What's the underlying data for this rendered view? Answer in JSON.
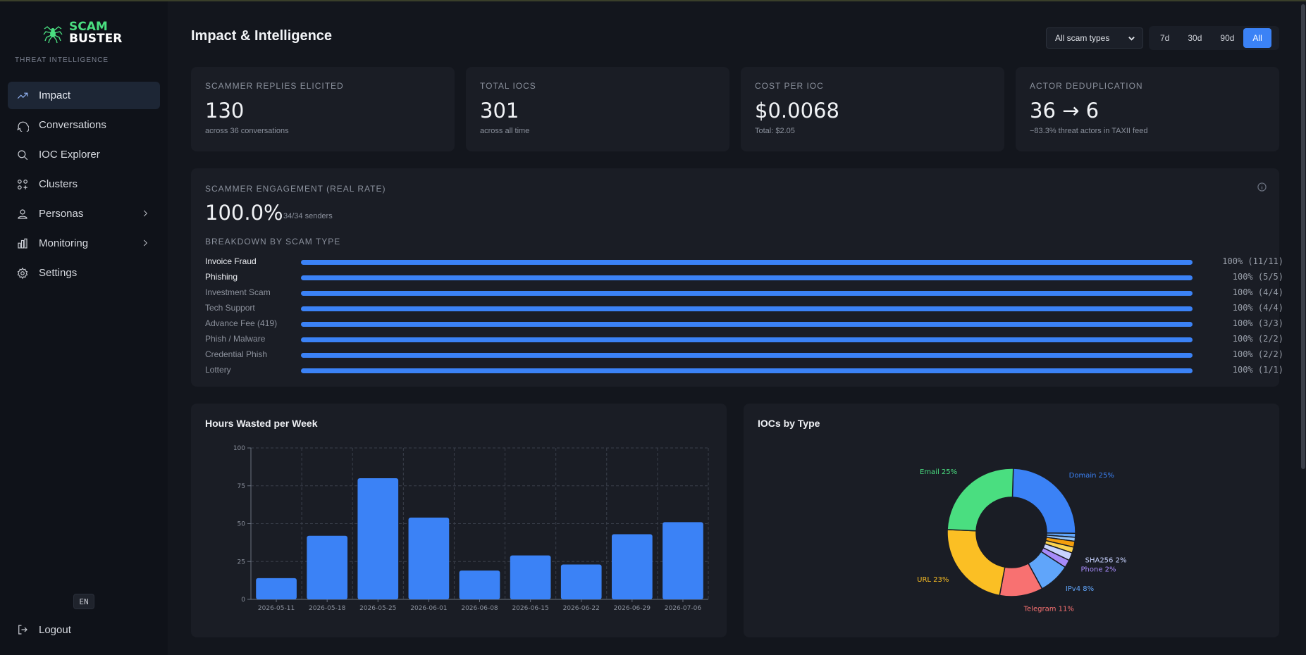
{
  "app": {
    "brand_line1": "SCAM",
    "brand_line2": "BUSTER",
    "brand_sub": "THREAT INTELLIGENCE",
    "logo_icon": "spider-icon"
  },
  "sidebar": {
    "items": [
      {
        "label": "Impact",
        "icon": "trend-icon",
        "active": true
      },
      {
        "label": "Conversations",
        "icon": "chat-icon"
      },
      {
        "label": "IOC Explorer",
        "icon": "search-icon"
      },
      {
        "label": "Clusters",
        "icon": "clusters-icon"
      },
      {
        "label": "Personas",
        "icon": "user-icon",
        "expandable": true
      },
      {
        "label": "Monitoring",
        "icon": "chart-icon",
        "expandable": true
      },
      {
        "label": "Settings",
        "icon": "gear-icon"
      }
    ],
    "language": "EN",
    "logout": "Logout"
  },
  "header": {
    "title": "Impact & Intelligence",
    "filter": {
      "selected": "All scam types"
    },
    "ranges": [
      "7d",
      "30d",
      "90d",
      "All"
    ],
    "active_range": "All"
  },
  "stats": [
    {
      "label": "SCAMMER REPLIES ELICITED",
      "value": "130",
      "sub": "across 36 conversations"
    },
    {
      "label": "TOTAL IOCS",
      "value": "301",
      "sub": "across all time"
    },
    {
      "label": "COST PER IOC",
      "value": "$0.0068",
      "sub": "Total: $2.05"
    },
    {
      "label": "ACTOR DEDUPLICATION",
      "value": "36 → 6",
      "sub": "−83.3% threat actors in TAXII feed"
    }
  ],
  "engagement": {
    "label": "SCAMMER ENGAGEMENT (REAL RATE)",
    "value": "100.0%",
    "sub": "34/34 senders",
    "breakdown_label": "BREAKDOWN BY SCAM TYPE",
    "rows": [
      {
        "name": "Invoice Fraud",
        "rate": 1.0,
        "value": "100% (11/11)",
        "highlight": true
      },
      {
        "name": "Phishing",
        "rate": 1.0,
        "value": "100% (5/5)",
        "highlight": true
      },
      {
        "name": "Investment Scam",
        "rate": 1.0,
        "value": "100% (4/4)"
      },
      {
        "name": "Tech Support",
        "rate": 1.0,
        "value": "100% (4/4)"
      },
      {
        "name": "Advance Fee (419)",
        "rate": 1.0,
        "value": "100% (3/3)"
      },
      {
        "name": "Phish / Malware",
        "rate": 1.0,
        "value": "100% (2/2)"
      },
      {
        "name": "Credential Phish",
        "rate": 1.0,
        "value": "100% (2/2)"
      },
      {
        "name": "Lottery",
        "rate": 1.0,
        "value": "100% (1/1)"
      }
    ]
  },
  "chart_data": [
    {
      "type": "bar",
      "title": "Hours Wasted per Week",
      "categories": [
        "2026-05-11",
        "2026-05-18",
        "2026-05-25",
        "2026-06-01",
        "2026-06-08",
        "2026-06-15",
        "2026-06-22",
        "2026-06-29",
        "2026-07-06"
      ],
      "values": [
        14,
        42,
        80,
        54,
        19,
        29,
        23,
        43,
        51
      ],
      "ylim": [
        0,
        100
      ],
      "yticks": [
        0,
        25,
        50,
        75,
        100
      ],
      "grid": true,
      "color": "#3b82f6"
    },
    {
      "type": "pie",
      "title": "IOCs by Type",
      "donut": true,
      "slices": [
        {
          "name": "Domain",
          "value": 25,
          "label": "Domain 25%",
          "color": "#3b82f6"
        },
        {
          "name": "",
          "value": 1,
          "label": "",
          "color": "#60a5fa"
        },
        {
          "name": "",
          "value": 1,
          "label": "",
          "color": "#93c5fd"
        },
        {
          "name": "",
          "value": 1.5,
          "label": "",
          "color": "#f59e0b"
        },
        {
          "name": "",
          "value": 1.5,
          "label": "",
          "color": "#fcd34d"
        },
        {
          "name": "SHA256",
          "value": 2,
          "label": "SHA256 2%",
          "color": "#c7d2fe"
        },
        {
          "name": "Phone",
          "value": 2,
          "label": "Phone 2%",
          "color": "#a78bfa"
        },
        {
          "name": "IPv4",
          "value": 8,
          "label": "IPv4 8%",
          "color": "#60a5fa"
        },
        {
          "name": "Telegram",
          "value": 11,
          "label": "Telegram 11%",
          "color": "#f87171"
        },
        {
          "name": "URL",
          "value": 23,
          "label": "URL 23%",
          "color": "#fbbf24"
        },
        {
          "name": "Email",
          "value": 25,
          "label": "Email 25%",
          "color": "#4ade80"
        }
      ]
    }
  ]
}
